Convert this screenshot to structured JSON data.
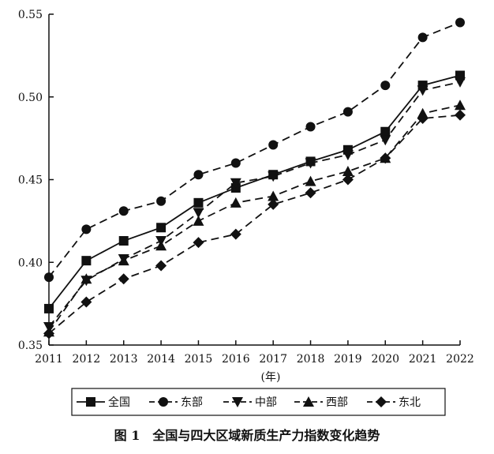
{
  "chart_data": {
    "type": "line",
    "title": "",
    "xlabel": "(年)",
    "ylabel": "",
    "categories": [
      "2011",
      "2012",
      "2013",
      "2014",
      "2015",
      "2016",
      "2017",
      "2018",
      "2019",
      "2020",
      "2021",
      "2022"
    ],
    "ylim": [
      0.35,
      0.55
    ],
    "yticks": [
      "0.35",
      "0.40",
      "0.45",
      "0.50",
      "0.55"
    ],
    "grid": false,
    "legend": "bottom",
    "series": [
      {
        "name": "全国",
        "marker": "square",
        "dash": "solid",
        "values": [
          0.372,
          0.401,
          0.413,
          0.421,
          0.436,
          0.445,
          0.453,
          0.461,
          0.468,
          0.479,
          0.507,
          0.513
        ]
      },
      {
        "name": "东部",
        "marker": "circle",
        "dash": "dashed",
        "values": [
          0.391,
          0.42,
          0.431,
          0.437,
          0.453,
          0.46,
          0.471,
          0.482,
          0.491,
          0.507,
          0.536,
          0.545
        ]
      },
      {
        "name": "中部",
        "marker": "triangle-down",
        "dash": "dashed",
        "values": [
          0.361,
          0.389,
          0.402,
          0.413,
          0.43,
          0.448,
          0.452,
          0.46,
          0.465,
          0.474,
          0.504,
          0.509
        ]
      },
      {
        "name": "西部",
        "marker": "triangle-up",
        "dash": "dashed",
        "values": [
          0.358,
          0.39,
          0.401,
          0.41,
          0.425,
          0.436,
          0.44,
          0.449,
          0.455,
          0.463,
          0.49,
          0.495
        ]
      },
      {
        "name": "东北",
        "marker": "diamond",
        "dash": "dashed",
        "values": [
          0.357,
          0.376,
          0.39,
          0.398,
          0.412,
          0.417,
          0.435,
          0.442,
          0.45,
          0.463,
          0.487,
          0.489
        ]
      }
    ]
  },
  "caption": "图 1　全国与四大区域新质生产力指数变化趋势"
}
